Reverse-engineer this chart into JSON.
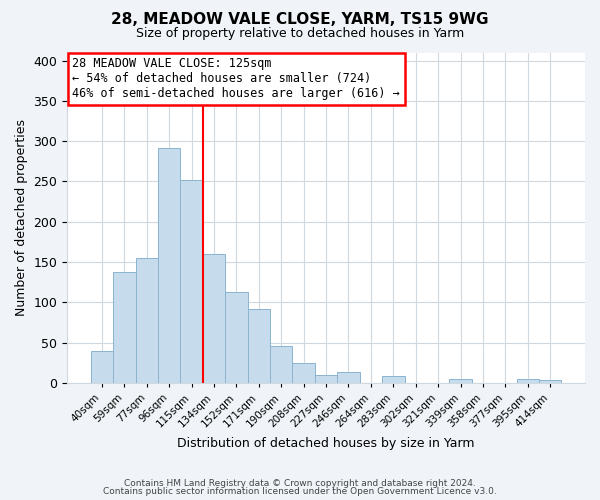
{
  "title_line1": "28, MEADOW VALE CLOSE, YARM, TS15 9WG",
  "title_line2": "Size of property relative to detached houses in Yarm",
  "xlabel": "Distribution of detached houses by size in Yarm",
  "ylabel": "Number of detached properties",
  "bin_labels": [
    "40sqm",
    "59sqm",
    "77sqm",
    "96sqm",
    "115sqm",
    "134sqm",
    "152sqm",
    "171sqm",
    "190sqm",
    "208sqm",
    "227sqm",
    "246sqm",
    "264sqm",
    "283sqm",
    "302sqm",
    "321sqm",
    "339sqm",
    "358sqm",
    "377sqm",
    "395sqm",
    "414sqm"
  ],
  "bar_heights": [
    40,
    138,
    155,
    292,
    252,
    160,
    113,
    92,
    46,
    25,
    10,
    13,
    0,
    8,
    0,
    0,
    5,
    0,
    0,
    5,
    3
  ],
  "bar_color": "#c6dcec",
  "bar_edge_color": "#8ab4d0",
  "vline_color": "red",
  "vline_x_idx": 5,
  "ylim": [
    0,
    410
  ],
  "yticks": [
    0,
    50,
    100,
    150,
    200,
    250,
    300,
    350,
    400
  ],
  "annotation_title": "28 MEADOW VALE CLOSE: 125sqm",
  "annotation_line1": "← 54% of detached houses are smaller (724)",
  "annotation_line2": "46% of semi-detached houses are larger (616) →",
  "footnote1": "Contains HM Land Registry data © Crown copyright and database right 2024.",
  "footnote2": "Contains public sector information licensed under the Open Government Licence v3.0.",
  "bg_color": "#f0f4f8",
  "plot_bg_color": "#ffffff",
  "grid_color": "#d0d8e0"
}
